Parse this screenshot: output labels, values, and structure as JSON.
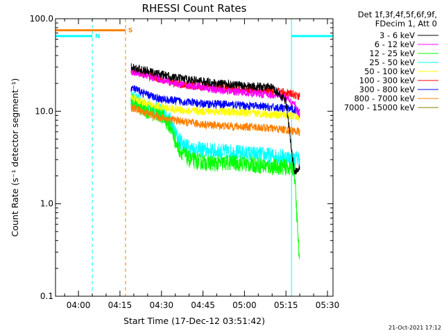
{
  "chart_data": {
    "type": "line",
    "title": "RHESSI Count Rates",
    "xlabel": "Start Time (17-Dec-12 03:51:42)",
    "ylabel": "Count Rate (s⁻¹ detector segment⁻¹)",
    "y_scale": "log",
    "ylim": [
      0.1,
      100.0
    ],
    "y_ticks": [
      "100.0",
      "10.0",
      "1.0",
      "0.1"
    ],
    "x_ticks": [
      "04:00",
      "04:15",
      "04:30",
      "04:45",
      "05:00",
      "05:15",
      "05:30"
    ],
    "xlim": [
      "03:51:42",
      "05:32:00"
    ],
    "legend_header": [
      "Det 1f,3f,4f,5f,6f,9f,",
      "FDecim 1, Att 0"
    ],
    "legend_position": "top-right outside plot",
    "data_start": "04:19:00",
    "data_end": "05:20:00",
    "series": [
      {
        "name": "3 - 6 keV",
        "color": "#000000",
        "x": [
          "04:19",
          "04:25",
          "04:30",
          "04:35",
          "04:40",
          "04:45",
          "04:50",
          "04:55",
          "05:00",
          "05:05",
          "05:10",
          "05:15",
          "05:18",
          "05:20"
        ],
        "y": [
          30,
          27,
          25,
          23,
          22,
          21,
          20,
          19.5,
          19,
          18.5,
          18,
          13,
          2.2,
          2.5
        ]
      },
      {
        "name": "6 - 12 keV",
        "color": "#ff00ff",
        "x": [
          "04:19",
          "04:25",
          "04:30",
          "04:35",
          "04:40",
          "04:45",
          "04:50",
          "04:55",
          "05:00",
          "05:05",
          "05:10",
          "05:15",
          "05:18",
          "05:20"
        ],
        "y": [
          27,
          24,
          22,
          20,
          19,
          18,
          17,
          16.5,
          16,
          15.5,
          15,
          14,
          12,
          9
        ]
      },
      {
        "name": "12 - 25 keV",
        "color": "#00ff00",
        "x": [
          "04:19",
          "04:25",
          "04:30",
          "04:33",
          "04:36",
          "04:40",
          "04:45",
          "04:50",
          "04:55",
          "05:00",
          "05:05",
          "05:10",
          "05:15",
          "05:18",
          "05:20"
        ],
        "y": [
          13,
          10,
          9,
          7,
          4,
          3,
          2.8,
          2.7,
          2.8,
          2.7,
          2.6,
          2.5,
          2.5,
          2.4,
          0.2
        ]
      },
      {
        "name": "25 - 50 keV",
        "color": "#00ffff",
        "x": [
          "04:19",
          "04:25",
          "04:30",
          "04:33",
          "04:36",
          "04:40",
          "04:45",
          "04:50",
          "04:55",
          "05:00",
          "05:05",
          "05:10",
          "05:15",
          "05:18",
          "05:20"
        ],
        "y": [
          14,
          11,
          10,
          8,
          5,
          4,
          3.8,
          3.7,
          3.6,
          3.5,
          3.4,
          3.3,
          3.2,
          3.0,
          3.2
        ]
      },
      {
        "name": "50 - 100 keV",
        "color": "#ffff00",
        "x": [
          "04:19",
          "04:25",
          "04:30",
          "04:35",
          "04:40",
          "04:45",
          "04:50",
          "04:55",
          "05:00",
          "05:05",
          "05:10",
          "05:15",
          "05:18",
          "05:20"
        ],
        "y": [
          14,
          12,
          11,
          10.5,
          10,
          10,
          10,
          9.8,
          9.6,
          9.4,
          9.2,
          9,
          8.8,
          8.5
        ]
      },
      {
        "name": "100 - 300 keV",
        "color": "#ff0000",
        "x": [
          "04:19",
          "04:25",
          "04:30",
          "04:35",
          "04:40",
          "04:45",
          "04:50",
          "04:55",
          "05:00",
          "05:05",
          "05:10",
          "05:15",
          "05:18",
          "05:20"
        ],
        "y": [
          28,
          25,
          22,
          20,
          19,
          18.5,
          18,
          17.5,
          17,
          16.8,
          16.5,
          16,
          15,
          14.5
        ]
      },
      {
        "name": "300 - 800 keV",
        "color": "#0000ff",
        "x": [
          "04:19",
          "04:25",
          "04:30",
          "04:35",
          "04:40",
          "04:45",
          "04:50",
          "04:55",
          "05:00",
          "05:05",
          "05:10",
          "05:15",
          "05:18",
          "05:20"
        ],
        "y": [
          18,
          15,
          13.5,
          13,
          12.5,
          12,
          12,
          11.8,
          11.5,
          11.3,
          11,
          10.8,
          10.5,
          10
        ]
      },
      {
        "name": "800 - 7000 keV",
        "color": "#ff8000",
        "x": [
          "04:19",
          "04:25",
          "04:30",
          "04:35",
          "04:40",
          "04:45",
          "04:50",
          "04:55",
          "05:00",
          "05:05",
          "05:10",
          "05:15",
          "05:18",
          "05:20"
        ],
        "y": [
          11,
          9.5,
          8.5,
          8,
          7.5,
          7.2,
          7,
          6.9,
          6.8,
          6.7,
          6.5,
          6.3,
          6.1,
          6
        ]
      },
      {
        "name": "7000 - 15000 keV",
        "color": "#808000",
        "x": [],
        "y": []
      }
    ],
    "attenuator_bars": [
      {
        "label": "S",
        "color": "#ff8000",
        "y": 75,
        "start": "03:51:42",
        "end": "04:17:00"
      },
      {
        "label": "N",
        "color": "#00ffff",
        "y": 65,
        "start": "03:51:42",
        "end": "04:05:00"
      },
      {
        "label": "",
        "color": "#00ffff",
        "y": 65,
        "start": "05:17:00",
        "end": "05:32:00"
      }
    ],
    "vertical_markers": [
      {
        "time": "04:05:00",
        "color": "#00ffff",
        "style": "dashed"
      },
      {
        "time": "04:17:00",
        "color": "#ff8000",
        "style": "dashed"
      },
      {
        "time": "05:17:00",
        "color": "#00ffff",
        "style": "solid"
      },
      {
        "time": "05:32:00",
        "color": "#00ffff",
        "style": "dashed"
      }
    ],
    "grid": false
  },
  "footer_stamp": "21-Oct-2021 17:12"
}
